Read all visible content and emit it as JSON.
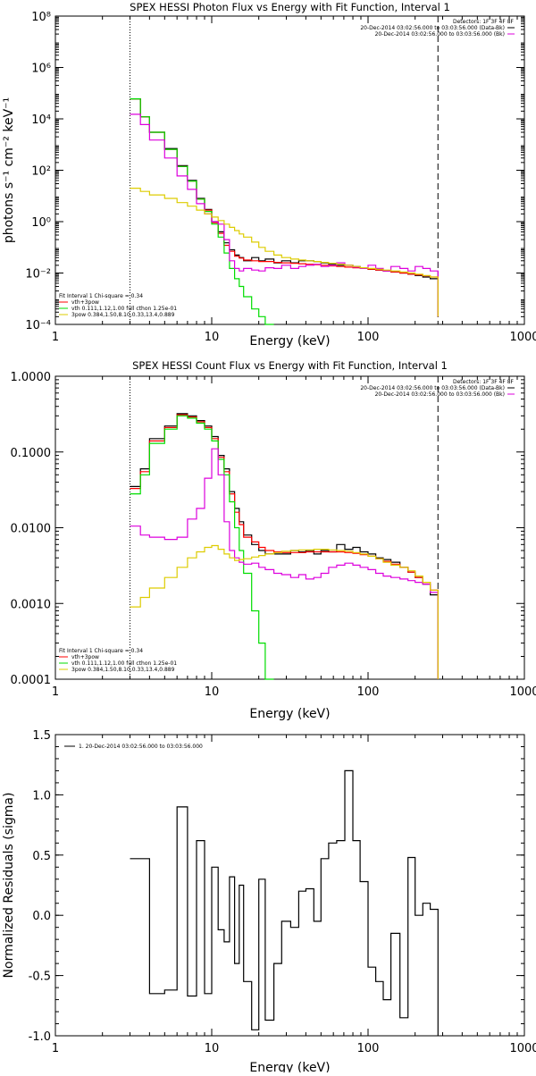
{
  "chart_data": [
    {
      "type": "line",
      "title": "SPEX HESSI Photon Flux vs Energy with Fit Function, Interval 1",
      "xlabel": "Energy (keV)",
      "ylabel": "photons s⁻¹ cm⁻² keV⁻¹",
      "xscale": "log",
      "yscale": "log",
      "xlim": [
        1,
        1000
      ],
      "ylim": [
        0.0001,
        100000000
      ],
      "xticks": [
        1,
        10,
        100,
        1000
      ],
      "xtick_labels": [
        "1",
        "10",
        "100",
        "1000"
      ],
      "yticks": [
        0.0001,
        0.01,
        1,
        100,
        10000,
        1000000,
        100000000
      ],
      "ytick_labels": [
        "10⁻⁴",
        "10⁻²",
        "10⁰",
        "10²",
        "10⁴",
        "10⁶",
        "10⁸"
      ],
      "vlines": [
        {
          "x": 3,
          "style": "dotted"
        },
        {
          "x": 280,
          "style": "dashed"
        }
      ],
      "legend_top": {
        "header": "Detectors: 1F 3F 4F 8F",
        "entries": [
          "20-Dec-2014 03:02:56.000 to 03:03:56.000 (Data-Bk)",
          "20-Dec-2014 03:02:56.000 to 03:03:56.000 (Bk)"
        ]
      },
      "legend_bottom": {
        "header": "Fit Interval 1   Chi-square = 0.34",
        "entries": [
          "vth+3pow",
          "vth 0.111,1.12,1.00  full cthon 1.25e-01",
          "3pow 0.384,1.50,8.10,0.33,13.4,0.889"
        ]
      },
      "series": [
        {
          "color": "#000000",
          "x": [
            3,
            3.5,
            4,
            5,
            6,
            7,
            8,
            9,
            10,
            11,
            12,
            13,
            14,
            15,
            16,
            18,
            20,
            22,
            25,
            28,
            32,
            36,
            40,
            45,
            50,
            56,
            63,
            71,
            80,
            89,
            100,
            112,
            125,
            140,
            160,
            180,
            200,
            224,
            250,
            280
          ],
          "y": [
            60000,
            12000,
            3000,
            700,
            150,
            40,
            8,
            3,
            1,
            0.4,
            0.15,
            0.08,
            0.05,
            0.04,
            0.03,
            0.04,
            0.03,
            0.035,
            0.025,
            0.03,
            0.025,
            0.03,
            0.03,
            0.028,
            0.025,
            0.022,
            0.02,
            0.02,
            0.018,
            0.015,
            0.014,
            0.013,
            0.012,
            0.011,
            0.01,
            0.009,
            0.008,
            0.007,
            0.006,
            0.0002
          ]
        },
        {
          "color": "#ff0000",
          "x": [
            3,
            3.5,
            4,
            5,
            6,
            7,
            8,
            9,
            10,
            11,
            12,
            13,
            14,
            15,
            16,
            18,
            20,
            22,
            25,
            28,
            32,
            36,
            40,
            45,
            50,
            56,
            63,
            71,
            80,
            89,
            100,
            112,
            125,
            140,
            160,
            180,
            200,
            224,
            250,
            280
          ],
          "y": [
            60000,
            12000,
            3000,
            650,
            140,
            38,
            7.5,
            2.8,
            0.9,
            0.35,
            0.12,
            0.07,
            0.045,
            0.038,
            0.032,
            0.03,
            0.028,
            0.028,
            0.026,
            0.025,
            0.024,
            0.023,
            0.022,
            0.021,
            0.02,
            0.019,
            0.018,
            0.017,
            0.016,
            0.015,
            0.014,
            0.013,
            0.012,
            0.011,
            0.01,
            0.009,
            0.0085,
            0.0078,
            0.007,
            0.0002
          ]
        },
        {
          "color": "#00dd00",
          "x": [
            3,
            3.5,
            4,
            5,
            6,
            7,
            8,
            9,
            10,
            11,
            12,
            13,
            14,
            15,
            16,
            18,
            20,
            22,
            25
          ],
          "y": [
            60000,
            12000,
            3000,
            650,
            140,
            38,
            7.5,
            2.5,
            0.8,
            0.25,
            0.06,
            0.015,
            0.006,
            0.003,
            0.0012,
            0.0004,
            0.0002,
            0.0001,
            0.0001
          ]
        },
        {
          "color": "#dd00dd",
          "x": [
            3,
            3.5,
            4,
            5,
            6,
            7,
            8,
            9,
            10,
            11,
            12,
            13,
            14,
            15,
            16,
            18,
            20,
            22,
            25,
            28,
            32,
            36,
            40,
            45,
            50,
            56,
            63,
            71,
            80,
            89,
            100,
            112,
            125,
            140,
            160,
            180,
            200,
            224,
            250,
            280
          ],
          "y": [
            15000,
            6000,
            1500,
            300,
            60,
            18,
            5,
            2,
            1,
            0.8,
            0.2,
            0.03,
            0.015,
            0.012,
            0.015,
            0.013,
            0.012,
            0.016,
            0.015,
            0.02,
            0.015,
            0.018,
            0.02,
            0.022,
            0.018,
            0.02,
            0.025,
            0.02,
            0.017,
            0.015,
            0.02,
            0.015,
            0.012,
            0.018,
            0.015,
            0.012,
            0.018,
            0.015,
            0.012,
            0.0002
          ]
        },
        {
          "color": "#ddcc00",
          "x": [
            3,
            3.5,
            4,
            5,
            6,
            7,
            8,
            9,
            10,
            11,
            12,
            13,
            14,
            15,
            16,
            18,
            20,
            22,
            25,
            28,
            32,
            36,
            40,
            45,
            50,
            56,
            63,
            71,
            80,
            89,
            100,
            112,
            125,
            140,
            160,
            180,
            200,
            224,
            250,
            280
          ],
          "y": [
            20,
            15,
            11,
            8,
            5.5,
            4,
            2.8,
            2,
            1.5,
            1.1,
            0.8,
            0.6,
            0.45,
            0.33,
            0.25,
            0.16,
            0.1,
            0.07,
            0.05,
            0.04,
            0.035,
            0.032,
            0.03,
            0.028,
            0.026,
            0.024,
            0.022,
            0.02,
            0.018,
            0.016,
            0.015,
            0.014,
            0.013,
            0.012,
            0.011,
            0.01,
            0.009,
            0.008,
            0.007,
            0.0002
          ]
        }
      ]
    },
    {
      "type": "line",
      "title": "SPEX HESSI Count Flux vs Energy with Fit Function, Interval 1",
      "xlabel": "Energy (keV)",
      "ylabel": "",
      "xscale": "log",
      "yscale": "log",
      "xlim": [
        1,
        1000
      ],
      "ylim": [
        0.0001,
        1
      ],
      "xticks": [
        1,
        10,
        100,
        1000
      ],
      "xtick_labels": [
        "1",
        "10",
        "100",
        "1000"
      ],
      "yticks": [
        0.0001,
        0.001,
        0.01,
        0.1,
        1
      ],
      "ytick_labels": [
        "0.0001",
        "0.0010",
        "0.0100",
        "0.1000",
        "1.0000"
      ],
      "vlines": [
        {
          "x": 3,
          "style": "dotted"
        },
        {
          "x": 280,
          "style": "dashed"
        }
      ],
      "legend_top": {
        "header": "Detectors: 1F 3F 4F 8F",
        "entries": [
          "20-Dec-2014 03:02:56.000 to 03:03:56.000 (Data-Bk)",
          "20-Dec-2014 03:02:56.000 to 03:03:56.000 (Bk)"
        ]
      },
      "legend_bottom": {
        "header": "Fit Interval 1   Chi-square = 0.34",
        "entries": [
          "vth+3pow",
          "vth 0.111,1.12,1.00  full cthon 1.25e-01",
          "3pow 0.384,1.50,8.10,0.33,13.4,0.889"
        ]
      },
      "series": [
        {
          "color": "#000000",
          "x": [
            3,
            3.5,
            4,
            5,
            6,
            7,
            8,
            9,
            10,
            11,
            12,
            13,
            14,
            15,
            16,
            18,
            20,
            22,
            25,
            28,
            32,
            36,
            40,
            45,
            50,
            56,
            63,
            71,
            80,
            89,
            100,
            112,
            125,
            140,
            160,
            180,
            200,
            224,
            250,
            280
          ],
          "y": [
            0.035,
            0.06,
            0.15,
            0.22,
            0.32,
            0.3,
            0.26,
            0.22,
            0.16,
            0.09,
            0.06,
            0.03,
            0.018,
            0.012,
            0.008,
            0.006,
            0.005,
            0.0045,
            0.0045,
            0.0045,
            0.005,
            0.0048,
            0.005,
            0.0045,
            0.005,
            0.0048,
            0.006,
            0.0052,
            0.0055,
            0.0048,
            0.0045,
            0.004,
            0.0038,
            0.0035,
            0.003,
            0.0026,
            0.0022,
            0.0018,
            0.0013,
            0.0001
          ]
        },
        {
          "color": "#ff0000",
          "x": [
            3,
            3.5,
            4,
            5,
            6,
            7,
            8,
            9,
            10,
            11,
            12,
            13,
            14,
            15,
            16,
            18,
            20,
            22,
            25,
            28,
            32,
            36,
            40,
            45,
            50,
            56,
            63,
            71,
            80,
            89,
            100,
            112,
            125,
            140,
            160,
            180,
            200,
            224,
            250,
            280
          ],
          "y": [
            0.033,
            0.055,
            0.14,
            0.21,
            0.31,
            0.29,
            0.25,
            0.21,
            0.15,
            0.085,
            0.055,
            0.028,
            0.016,
            0.011,
            0.0075,
            0.0065,
            0.0055,
            0.005,
            0.0048,
            0.0047,
            0.0047,
            0.0047,
            0.0048,
            0.0048,
            0.0048,
            0.0048,
            0.0048,
            0.0047,
            0.0046,
            0.0044,
            0.0042,
            0.0039,
            0.0036,
            0.0033,
            0.003,
            0.0026,
            0.0022,
            0.0019,
            0.0015,
            0.0001
          ]
        },
        {
          "color": "#00dd00",
          "x": [
            3,
            3.5,
            4,
            5,
            6,
            7,
            8,
            9,
            10,
            11,
            12,
            13,
            14,
            15,
            16,
            18,
            20,
            22,
            25
          ],
          "y": [
            0.028,
            0.05,
            0.13,
            0.2,
            0.3,
            0.28,
            0.24,
            0.2,
            0.14,
            0.08,
            0.05,
            0.022,
            0.01,
            0.005,
            0.0025,
            0.0008,
            0.0003,
            0.0001,
            0.0001
          ]
        },
        {
          "color": "#dd00dd",
          "x": [
            3,
            3.5,
            4,
            5,
            6,
            7,
            8,
            9,
            10,
            11,
            12,
            13,
            14,
            15,
            16,
            18,
            20,
            22,
            25,
            28,
            32,
            36,
            40,
            45,
            50,
            56,
            63,
            71,
            80,
            89,
            100,
            112,
            125,
            140,
            160,
            180,
            200,
            224,
            250,
            280
          ],
          "y": [
            0.0105,
            0.008,
            0.0075,
            0.007,
            0.0075,
            0.013,
            0.018,
            0.045,
            0.11,
            0.05,
            0.012,
            0.005,
            0.004,
            0.0035,
            0.0033,
            0.0034,
            0.003,
            0.0028,
            0.0025,
            0.0024,
            0.0022,
            0.0024,
            0.0021,
            0.0022,
            0.0025,
            0.003,
            0.0032,
            0.0034,
            0.0032,
            0.003,
            0.0028,
            0.0025,
            0.0023,
            0.0022,
            0.0021,
            0.002,
            0.0019,
            0.0018,
            0.0014,
            0.0001
          ]
        },
        {
          "color": "#ddcc00",
          "x": [
            3,
            3.5,
            4,
            5,
            6,
            7,
            8,
            9,
            10,
            11,
            12,
            13,
            14,
            15,
            16,
            18,
            20,
            22,
            25,
            28,
            32,
            36,
            40,
            45,
            50,
            56,
            63,
            71,
            80,
            89,
            100,
            112,
            125,
            140,
            160,
            180,
            200,
            224,
            250,
            280
          ],
          "y": [
            0.0009,
            0.0012,
            0.0016,
            0.0022,
            0.003,
            0.004,
            0.0048,
            0.0055,
            0.0058,
            0.0052,
            0.0045,
            0.004,
            0.0037,
            0.0038,
            0.0039,
            0.0041,
            0.0043,
            0.0045,
            0.0047,
            0.0049,
            0.005,
            0.0051,
            0.0051,
            0.0052,
            0.0052,
            0.0051,
            0.005,
            0.0049,
            0.0047,
            0.0045,
            0.0042,
            0.0039,
            0.0035,
            0.0032,
            0.003,
            0.0027,
            0.0023,
            0.0019,
            0.0015,
            0.0001
          ]
        }
      ]
    },
    {
      "type": "line",
      "title": "",
      "xlabel": "Energy (keV)",
      "ylabel": "Normalized Residuals (sigma)",
      "xscale": "log",
      "yscale": "linear",
      "xlim": [
        1,
        1000
      ],
      "ylim": [
        -1,
        1.5
      ],
      "xticks": [
        1,
        10,
        100,
        1000
      ],
      "xtick_labels": [
        "1",
        "10",
        "100",
        "1000"
      ],
      "yticks": [
        -1,
        -0.5,
        0,
        0.5,
        1,
        1.5
      ],
      "ytick_labels": [
        "-1.0",
        "-0.5",
        "0.0",
        "0.5",
        "1.0",
        "1.5"
      ],
      "legend_top": {
        "header": "",
        "entries": [
          "1. 20-Dec-2014 03:02:56.000 to 03:03:56.000"
        ]
      },
      "series": [
        {
          "color": "#000000",
          "x": [
            3,
            3.5,
            4,
            5,
            6,
            7,
            8,
            9,
            10,
            11,
            12,
            13,
            14,
            15,
            16,
            18,
            20,
            22,
            25,
            28,
            32,
            36,
            40,
            45,
            50,
            56,
            63,
            71,
            80,
            89,
            100,
            112,
            125,
            140,
            160,
            180,
            200,
            224,
            250,
            280
          ],
          "y": [
            0.47,
            0.47,
            -0.65,
            -0.62,
            0.9,
            -0.67,
            0.62,
            -0.65,
            0.4,
            -0.12,
            -0.22,
            0.32,
            -0.4,
            0.25,
            -0.55,
            -0.95,
            0.3,
            -0.87,
            -0.4,
            -0.05,
            -0.1,
            0.2,
            0.22,
            -0.05,
            0.47,
            0.6,
            0.62,
            1.2,
            0.62,
            0.28,
            -0.43,
            -0.55,
            -0.7,
            -0.15,
            -0.85,
            0.48,
            0.0,
            0.1,
            0.05,
            -1.0
          ]
        }
      ]
    }
  ]
}
